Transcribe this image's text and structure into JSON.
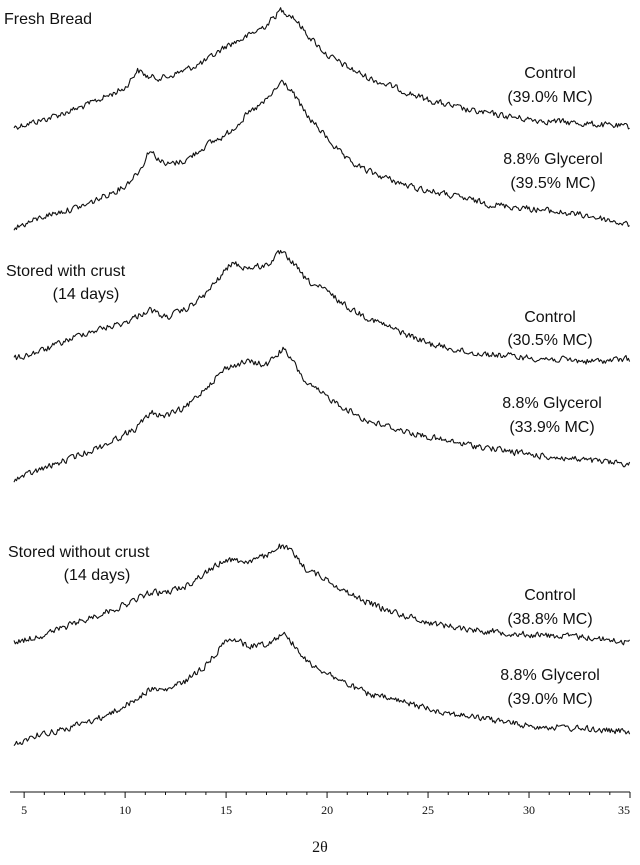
{
  "chart_data": {
    "type": "line",
    "xlabel": "2θ",
    "xlim": [
      4.3,
      35
    ],
    "xticks": [
      5,
      10,
      15,
      20,
      25,
      30,
      35
    ],
    "groups": [
      {
        "title": "Fresh Bread",
        "series": [
          {
            "name": "Control",
            "detail": "(39.0% MC)",
            "points": [
              [
                4.5,
                0.22
              ],
              [
                6,
                0.27
              ],
              [
                8,
                0.36
              ],
              [
                10,
                0.48
              ],
              [
                10.6,
                0.6
              ],
              [
                11.2,
                0.55
              ],
              [
                12,
                0.55
              ],
              [
                13,
                0.6
              ],
              [
                14,
                0.66
              ],
              [
                15,
                0.76
              ],
              [
                16,
                0.82
              ],
              [
                17,
                0.9
              ],
              [
                17.7,
                1.0
              ],
              [
                18.3,
                0.96
              ],
              [
                19,
                0.84
              ],
              [
                20,
                0.7
              ],
              [
                21,
                0.62
              ],
              [
                22,
                0.55
              ],
              [
                23,
                0.5
              ],
              [
                25,
                0.4
              ],
              [
                27,
                0.33
              ],
              [
                30,
                0.27
              ],
              [
                33,
                0.24
              ],
              [
                35,
                0.22
              ]
            ]
          },
          {
            "name": "8.8% Glycerol",
            "detail": "(39.5% MC)",
            "points": [
              [
                4.5,
                0.0
              ],
              [
                5.5,
                0.05
              ],
              [
                6,
                0.08
              ],
              [
                8,
                0.15
              ],
              [
                10,
                0.28
              ],
              [
                10.8,
                0.4
              ],
              [
                11.2,
                0.52
              ],
              [
                12,
                0.42
              ],
              [
                13,
                0.45
              ],
              [
                14,
                0.55
              ],
              [
                15,
                0.62
              ],
              [
                16,
                0.75
              ],
              [
                17,
                0.85
              ],
              [
                17.8,
                0.98
              ],
              [
                18.3,
                0.9
              ],
              [
                19,
                0.75
              ],
              [
                20,
                0.6
              ],
              [
                21,
                0.45
              ],
              [
                22,
                0.38
              ],
              [
                24,
                0.28
              ],
              [
                26,
                0.22
              ],
              [
                28,
                0.16
              ],
              [
                30,
                0.13
              ],
              [
                33,
                0.08
              ],
              [
                35,
                0.02
              ]
            ]
          }
        ]
      },
      {
        "title": "Stored with crust",
        "subtitle": "(14 days)",
        "series": [
          {
            "name": "Control",
            "detail": "(30.5% MC)",
            "points": [
              [
                4.5,
                0.2
              ],
              [
                6,
                0.27
              ],
              [
                8,
                0.4
              ],
              [
                10,
                0.48
              ],
              [
                11.2,
                0.58
              ],
              [
                12,
                0.52
              ],
              [
                13,
                0.58
              ],
              [
                14,
                0.7
              ],
              [
                14.8,
                0.85
              ],
              [
                15.3,
                0.94
              ],
              [
                16,
                0.9
              ],
              [
                17,
                0.92
              ],
              [
                17.7,
                1.02
              ],
              [
                18.2,
                0.96
              ],
              [
                19,
                0.8
              ],
              [
                20,
                0.72
              ],
              [
                21,
                0.6
              ],
              [
                22,
                0.52
              ],
              [
                23,
                0.45
              ],
              [
                25,
                0.32
              ],
              [
                27,
                0.25
              ],
              [
                30,
                0.21
              ],
              [
                33,
                0.18
              ],
              [
                35,
                0.2
              ]
            ]
          },
          {
            "name": "8.8% Glycerol",
            "detail": "(33.9% MC)",
            "points": [
              [
                4.5,
                0.0
              ],
              [
                5.5,
                0.05
              ],
              [
                7,
                0.12
              ],
              [
                9,
                0.22
              ],
              [
                10.5,
                0.32
              ],
              [
                11.3,
                0.42
              ],
              [
                12,
                0.4
              ],
              [
                13,
                0.45
              ],
              [
                14,
                0.58
              ],
              [
                15,
                0.7
              ],
              [
                16,
                0.74
              ],
              [
                17,
                0.72
              ],
              [
                17.8,
                0.82
              ],
              [
                18.3,
                0.74
              ],
              [
                19,
                0.6
              ],
              [
                20,
                0.52
              ],
              [
                21,
                0.44
              ],
              [
                22,
                0.37
              ],
              [
                24,
                0.3
              ],
              [
                26,
                0.24
              ],
              [
                28,
                0.2
              ],
              [
                30,
                0.16
              ],
              [
                33,
                0.12
              ],
              [
                35,
                0.1
              ]
            ]
          }
        ]
      },
      {
        "title": "Stored without crust",
        "subtitle": "(14 days)",
        "series": [
          {
            "name": "Control",
            "detail": "(38.8% MC)",
            "points": [
              [
                4.5,
                0.18
              ],
              [
                6,
                0.24
              ],
              [
                8,
                0.35
              ],
              [
                10,
                0.46
              ],
              [
                11.2,
                0.55
              ],
              [
                12,
                0.55
              ],
              [
                13,
                0.6
              ],
              [
                14,
                0.7
              ],
              [
                15,
                0.8
              ],
              [
                16,
                0.78
              ],
              [
                17,
                0.82
              ],
              [
                17.6,
                0.9
              ],
              [
                18.2,
                0.86
              ],
              [
                19,
                0.72
              ],
              [
                20,
                0.65
              ],
              [
                21,
                0.55
              ],
              [
                22,
                0.48
              ],
              [
                23,
                0.42
              ],
              [
                25,
                0.33
              ],
              [
                27,
                0.28
              ],
              [
                30,
                0.24
              ],
              [
                33,
                0.22
              ],
              [
                35,
                0.18
              ]
            ]
          },
          {
            "name": "8.8% Glycerol",
            "detail": "(39.0% MC)",
            "points": [
              [
                4.5,
                0.0
              ],
              [
                5.5,
                0.06
              ],
              [
                7,
                0.1
              ],
              [
                9,
                0.18
              ],
              [
                10.5,
                0.28
              ],
              [
                11.2,
                0.35
              ],
              [
                12,
                0.34
              ],
              [
                13,
                0.4
              ],
              [
                14,
                0.5
              ],
              [
                15.2,
                0.68
              ],
              [
                16,
                0.62
              ],
              [
                17,
                0.63
              ],
              [
                17.8,
                0.7
              ],
              [
                18.3,
                0.64
              ],
              [
                19,
                0.52
              ],
              [
                20,
                0.45
              ],
              [
                21,
                0.38
              ],
              [
                22,
                0.32
              ],
              [
                24,
                0.26
              ],
              [
                26,
                0.2
              ],
              [
                28,
                0.16
              ],
              [
                30,
                0.12
              ],
              [
                33,
                0.1
              ],
              [
                35,
                0.08
              ]
            ]
          }
        ]
      }
    ]
  }
}
